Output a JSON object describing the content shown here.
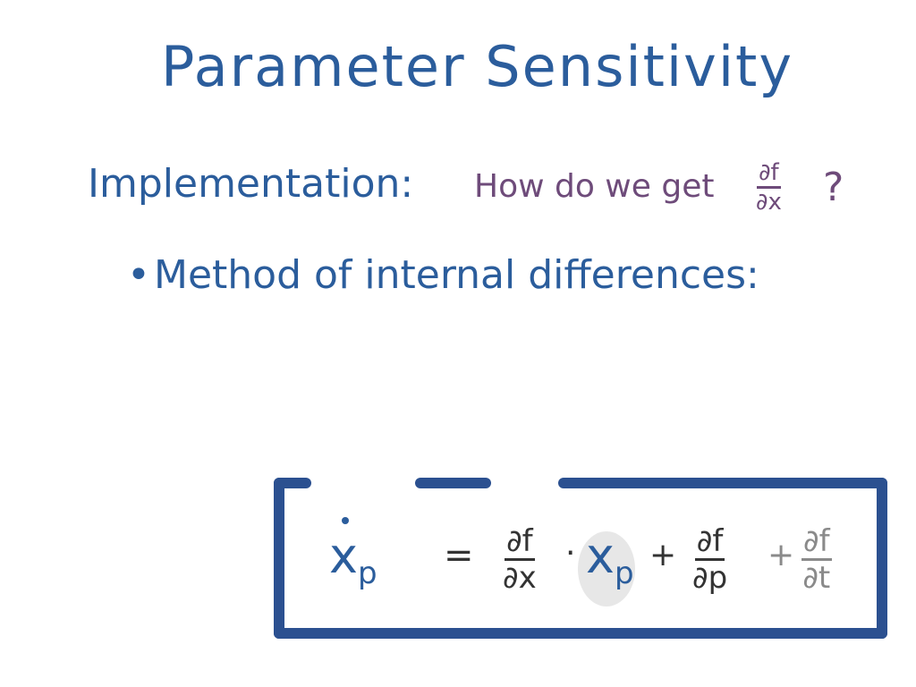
{
  "title": "Parameter Sensitivity",
  "implementation": {
    "label": "Implementation:",
    "question": "How do we get",
    "fraction": {
      "num": "∂f",
      "den": "∂x"
    },
    "mark": "?"
  },
  "bullet": "Method of internal differences:",
  "equation": {
    "lhs": {
      "var": "x",
      "sub": "p"
    },
    "equals": "=",
    "term1": {
      "num": "∂f",
      "den": "∂x"
    },
    "dot": "·",
    "term2": {
      "var": "x",
      "sub": "p"
    },
    "plus1": "+",
    "term3": {
      "num": "∂f",
      "den": "∂p"
    },
    "plus2": "+",
    "term4": {
      "num": "∂f",
      "den": "∂t"
    }
  }
}
